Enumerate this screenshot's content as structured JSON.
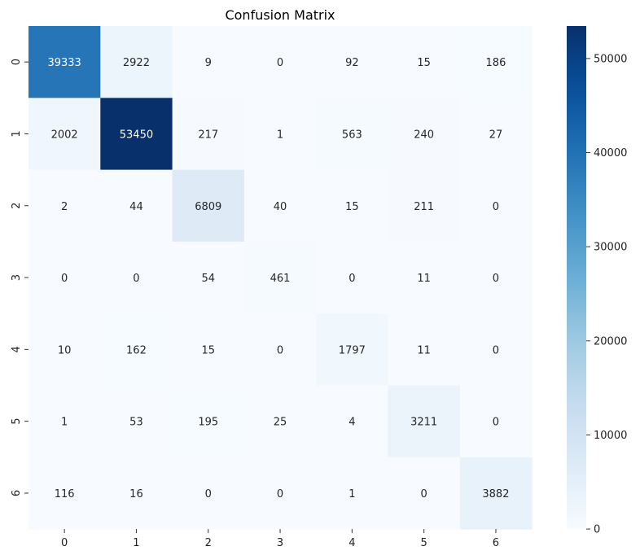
{
  "chart_data": {
    "type": "heatmap",
    "title": "Confusion Matrix",
    "xlabel": "",
    "ylabel": "",
    "x_tick_labels": [
      "0",
      "1",
      "2",
      "3",
      "4",
      "5",
      "6"
    ],
    "y_tick_labels": [
      "0",
      "1",
      "2",
      "3",
      "4",
      "5",
      "6"
    ],
    "values": [
      [
        39333,
        2922,
        9,
        0,
        92,
        15,
        186
      ],
      [
        2002,
        53450,
        217,
        1,
        563,
        240,
        27
      ],
      [
        2,
        44,
        6809,
        40,
        15,
        211,
        0
      ],
      [
        0,
        0,
        54,
        461,
        0,
        11,
        0
      ],
      [
        10,
        162,
        15,
        0,
        1797,
        11,
        0
      ],
      [
        1,
        53,
        195,
        25,
        4,
        3211,
        0
      ],
      [
        116,
        16,
        0,
        0,
        1,
        0,
        3882
      ]
    ],
    "colormap": "Blues",
    "color_range": [
      0,
      53450
    ],
    "colorbar_ticks": [
      "0",
      "10000",
      "20000",
      "30000",
      "40000",
      "50000"
    ],
    "colorbar_tick_values": [
      0,
      10000,
      20000,
      30000,
      40000,
      50000
    ],
    "annotations": true
  }
}
